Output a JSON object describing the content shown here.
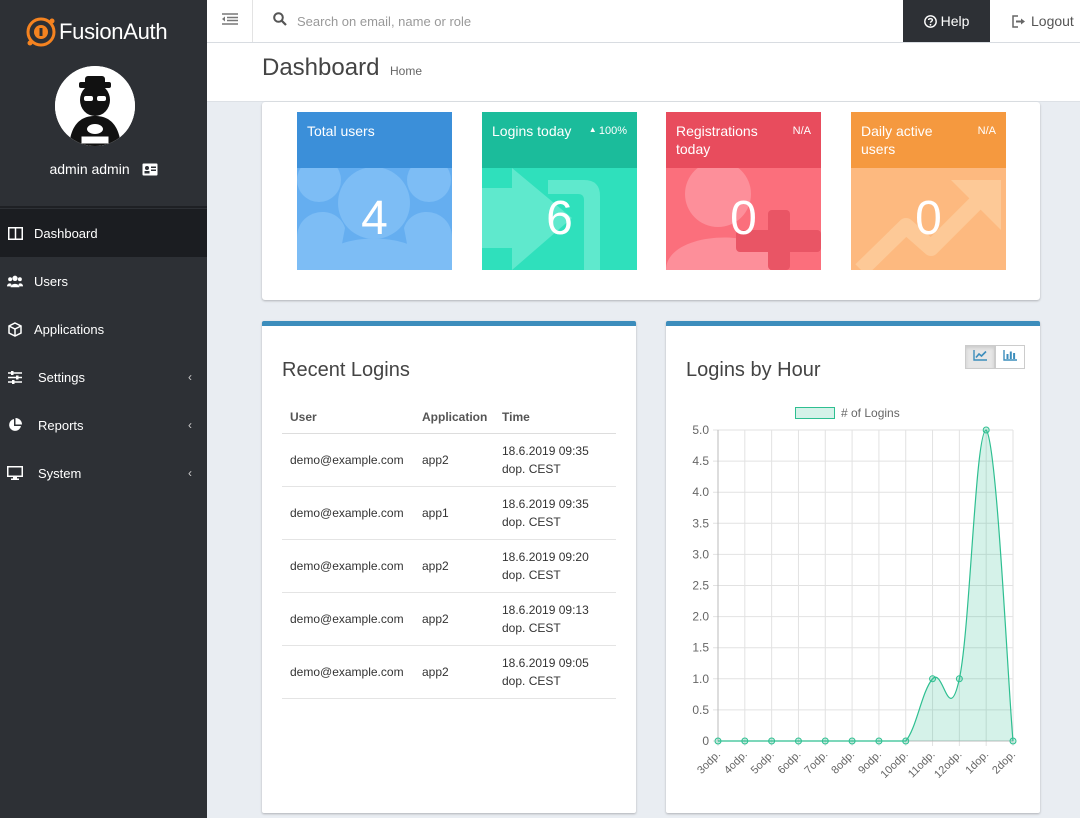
{
  "brand": {
    "name": "FusionAuth"
  },
  "user": {
    "display_name": "admin admin"
  },
  "nav": {
    "items": [
      {
        "label": "Dashboard",
        "icon": "columns-icon",
        "active": true
      },
      {
        "label": "Users",
        "icon": "users-icon"
      },
      {
        "label": "Applications",
        "icon": "cube-icon"
      },
      {
        "label": "Settings",
        "icon": "sliders-icon",
        "submenu": true
      },
      {
        "label": "Reports",
        "icon": "pie-chart-icon",
        "submenu": true
      },
      {
        "label": "System",
        "icon": "desktop-icon",
        "submenu": true
      }
    ]
  },
  "topbar": {
    "search_placeholder": "Search on email, name or role",
    "help_label": "Help",
    "logout_label": "Logout"
  },
  "header": {
    "title": "Dashboard",
    "breadcrumb": "Home"
  },
  "stats": [
    {
      "label": "Total users",
      "value": "4",
      "change": "",
      "color": "#3b8fd9"
    },
    {
      "label": "Logins today",
      "value": "6",
      "change": "100%",
      "color": "#1bbc9b"
    },
    {
      "label": "Registrations today",
      "value": "0",
      "change": "N/A",
      "color": "#e84c5d"
    },
    {
      "label": "Daily active users",
      "value": "0",
      "change": "N/A",
      "color": "#f5993f"
    }
  ],
  "recent_logins": {
    "title": "Recent Logins",
    "columns": [
      "User",
      "Application",
      "Time"
    ],
    "rows": [
      {
        "user": "demo@example.com",
        "app": "app2",
        "time1": "18.6.2019 09:35",
        "time2": "dop. CEST"
      },
      {
        "user": "demo@example.com",
        "app": "app1",
        "time1": "18.6.2019 09:35",
        "time2": "dop. CEST"
      },
      {
        "user": "demo@example.com",
        "app": "app2",
        "time1": "18.6.2019 09:20",
        "time2": "dop. CEST"
      },
      {
        "user": "demo@example.com",
        "app": "app2",
        "time1": "18.6.2019 09:13",
        "time2": "dop. CEST"
      },
      {
        "user": "demo@example.com",
        "app": "app2",
        "time1": "18.6.2019 09:05",
        "time2": "dop. CEST"
      }
    ]
  },
  "logins_by_hour": {
    "title": "Logins by Hour",
    "view_buttons": [
      "line-chart-icon",
      "bar-chart-icon"
    ]
  },
  "chart_data": {
    "type": "area",
    "title": "",
    "series": [
      {
        "name": "# of Logins",
        "values": [
          0,
          0,
          0,
          0,
          0,
          0,
          0,
          0,
          1,
          1,
          5,
          0
        ]
      }
    ],
    "categories": [
      "3odp.",
      "4odp.",
      "5odp.",
      "6odp.",
      "7odp.",
      "8odp.",
      "9odp.",
      "10odp.",
      "11odp.",
      "12odp.",
      "1dop.",
      "2dop."
    ],
    "yticks": [
      "0",
      "0.5",
      "1.0",
      "1.5",
      "2.0",
      "2.5",
      "3.0",
      "3.5",
      "4.0",
      "4.5",
      "5.0"
    ],
    "ylim": [
      0,
      5
    ],
    "grid": true,
    "legend": "top",
    "color": "#2ebf91"
  }
}
